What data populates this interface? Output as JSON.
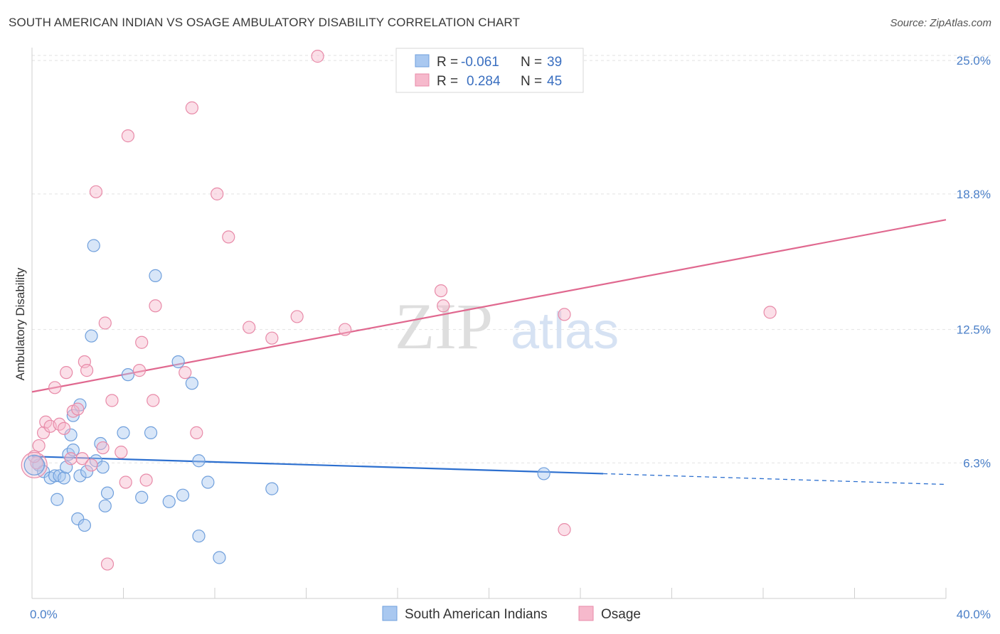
{
  "header": {
    "title": "SOUTH AMERICAN INDIAN VS OSAGE AMBULATORY DISABILITY CORRELATION CHART",
    "source": "Source: ZipAtlas.com"
  },
  "chart_data": {
    "type": "scatter",
    "ylabel": "Ambulatory Disability",
    "xlim": [
      0,
      40
    ],
    "ylim": [
      0,
      25.6
    ],
    "x_tick_labels": [
      "0.0%",
      "40.0%"
    ],
    "y_ticks": [
      6.3,
      12.5,
      18.8,
      25.0
    ],
    "y_tick_labels": [
      "6.3%",
      "12.5%",
      "18.8%",
      "25.0%"
    ],
    "grid": "horizontal dashed",
    "watermark": {
      "zip": "ZIP",
      "atlas": "atlas"
    },
    "legend": {
      "position": "top-center",
      "entries": [
        {
          "r_label": "R = ",
          "r_value": "-0.061",
          "n_label": "N = ",
          "n_value": "39"
        },
        {
          "r_label": "R = ",
          "r_value": "0.284",
          "n_label": "N = ",
          "n_value": "45"
        }
      ]
    },
    "colors": {
      "blue_fill": "#a9c8f0",
      "blue_stroke": "#6f9fdc",
      "blue_line": "#2c6fcf",
      "pink_fill": "#f6b9cc",
      "pink_stroke": "#e88aa8",
      "pink_line": "#e0688f"
    },
    "series": [
      {
        "name": "South American Indians",
        "color": "blue",
        "trend": {
          "x_start": 0,
          "y_start": 6.6,
          "x_solid_end": 25.0,
          "y_solid_end": 5.8,
          "x_end": 40,
          "y_end": 5.3
        },
        "points": [
          [
            0.3,
            6.2
          ],
          [
            0.5,
            5.9
          ],
          [
            0.8,
            5.6
          ],
          [
            1.0,
            5.7
          ],
          [
            1.1,
            4.6
          ],
          [
            1.2,
            5.7
          ],
          [
            1.4,
            5.6
          ],
          [
            1.5,
            6.1
          ],
          [
            1.6,
            6.7
          ],
          [
            1.8,
            6.9
          ],
          [
            1.7,
            7.6
          ],
          [
            1.8,
            8.5
          ],
          [
            2.0,
            3.7
          ],
          [
            2.1,
            9.0
          ],
          [
            2.1,
            5.7
          ],
          [
            2.3,
            3.4
          ],
          [
            2.4,
            5.9
          ],
          [
            2.6,
            12.2
          ],
          [
            2.7,
            16.4
          ],
          [
            2.8,
            6.4
          ],
          [
            3.0,
            7.2
          ],
          [
            3.1,
            6.1
          ],
          [
            3.2,
            4.3
          ],
          [
            3.3,
            4.9
          ],
          [
            4.0,
            7.7
          ],
          [
            4.2,
            10.4
          ],
          [
            4.8,
            4.7
          ],
          [
            5.2,
            7.7
          ],
          [
            5.4,
            15.0
          ],
          [
            6.0,
            4.5
          ],
          [
            6.4,
            11.0
          ],
          [
            6.6,
            4.8
          ],
          [
            7.0,
            10.0
          ],
          [
            7.3,
            6.4
          ],
          [
            7.3,
            2.9
          ],
          [
            7.7,
            5.4
          ],
          [
            8.2,
            1.9
          ],
          [
            10.5,
            5.1
          ],
          [
            22.4,
            5.8
          ]
        ]
      },
      {
        "name": "Osage",
        "color": "pink",
        "trend": {
          "x_start": 0,
          "y_start": 9.6,
          "x_end": 40,
          "y_end": 17.6
        },
        "points": [
          [
            0.2,
            6.3
          ],
          [
            0.3,
            7.1
          ],
          [
            0.5,
            7.7
          ],
          [
            0.6,
            8.2
          ],
          [
            0.8,
            8.0
          ],
          [
            1.0,
            9.8
          ],
          [
            1.2,
            8.1
          ],
          [
            1.4,
            7.9
          ],
          [
            1.5,
            10.5
          ],
          [
            1.7,
            6.5
          ],
          [
            1.8,
            8.7
          ],
          [
            2.0,
            8.8
          ],
          [
            2.2,
            6.5
          ],
          [
            2.3,
            11.0
          ],
          [
            2.4,
            10.6
          ],
          [
            2.6,
            6.2
          ],
          [
            2.8,
            18.9
          ],
          [
            3.1,
            7.0
          ],
          [
            3.2,
            12.8
          ],
          [
            3.3,
            1.6
          ],
          [
            3.5,
            9.2
          ],
          [
            3.9,
            6.8
          ],
          [
            4.1,
            5.4
          ],
          [
            4.2,
            21.5
          ],
          [
            4.7,
            10.6
          ],
          [
            4.8,
            11.9
          ],
          [
            5.0,
            5.5
          ],
          [
            5.3,
            9.2
          ],
          [
            5.4,
            13.6
          ],
          [
            6.7,
            10.5
          ],
          [
            7.0,
            22.8
          ],
          [
            7.2,
            7.7
          ],
          [
            8.1,
            18.8
          ],
          [
            8.6,
            16.8
          ],
          [
            9.5,
            12.6
          ],
          [
            10.5,
            12.1
          ],
          [
            11.6,
            13.1
          ],
          [
            12.5,
            25.2
          ],
          [
            13.7,
            12.5
          ],
          [
            17.9,
            14.3
          ],
          [
            18.0,
            13.6
          ],
          [
            23.3,
            3.2
          ],
          [
            23.3,
            13.2
          ],
          [
            32.3,
            13.3
          ],
          [
            0.1,
            6.6
          ]
        ]
      }
    ]
  }
}
